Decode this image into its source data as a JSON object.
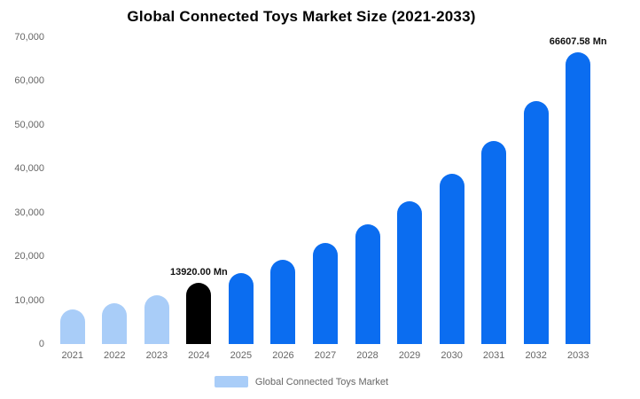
{
  "legend": {
    "label": "Global Connected Toys Market",
    "swatch_color": "#a9cdf8"
  },
  "colors": {
    "historical_bar": "#a9cdf8",
    "base_year_bar": "#000000",
    "forecast_bar": "#0b6df0",
    "axis_text": "#666666",
    "annotation_text": "#111111"
  },
  "chart_data": {
    "type": "bar",
    "title": "Global Connected Toys Market Size (2021-2033)",
    "categories": [
      "2021",
      "2022",
      "2023",
      "2024",
      "2025",
      "2026",
      "2027",
      "2028",
      "2029",
      "2030",
      "2031",
      "2032",
      "2033"
    ],
    "values": [
      7900,
      9300,
      11100,
      13920,
      16100,
      19200,
      23000,
      27300,
      32600,
      38800,
      46400,
      55500,
      66607.58
    ],
    "bar_colors": [
      "#a9cdf8",
      "#a9cdf8",
      "#a9cdf8",
      "#000000",
      "#0b6df0",
      "#0b6df0",
      "#0b6df0",
      "#0b6df0",
      "#0b6df0",
      "#0b6df0",
      "#0b6df0",
      "#0b6df0",
      "#0b6df0"
    ],
    "xlabel": "",
    "ylabel": "",
    "ylim": [
      0,
      70000
    ],
    "yticks": [
      0,
      10000,
      20000,
      30000,
      40000,
      50000,
      60000,
      70000
    ],
    "ytick_labels": [
      "0",
      "10,000",
      "20,000",
      "30,000",
      "40,000",
      "50,000",
      "60,000",
      "70,000"
    ],
    "grid": false,
    "legend_position": "bottom",
    "annotations": [
      {
        "target": "2024",
        "text": "13920.00 Mn"
      },
      {
        "target": "2033",
        "text": "66607.58 Mn"
      }
    ]
  }
}
